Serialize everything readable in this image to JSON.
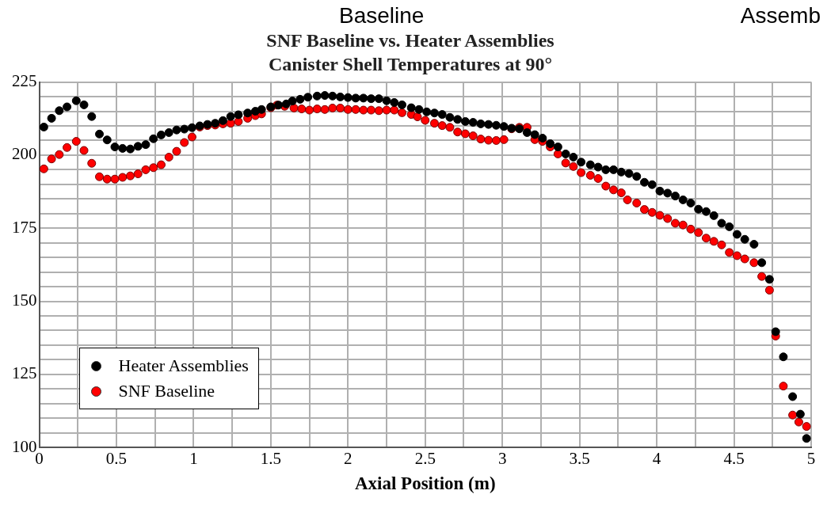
{
  "chart_data": {
    "type": "scatter",
    "title": "SNF Baseline vs. Heater Assemblies",
    "subtitle": "Canister Shell Temperatures at 90°",
    "xlabel": "Axial Position (m)",
    "annotations": [
      "Baseline",
      "Assemb"
    ],
    "xlim": [
      0,
      5
    ],
    "xticks": [
      0,
      {
        "value": 0.25,
        "label": null
      },
      0.5,
      {
        "value": 0.75,
        "label": null
      },
      1,
      {
        "value": 1.25,
        "label": null
      },
      1.5,
      {
        "value": 1.75,
        "label": null
      },
      2,
      {
        "value": 2.25,
        "label": null
      },
      2.5,
      {
        "value": 2.75,
        "label": null
      },
      3,
      {
        "value": 3.25,
        "label": null
      },
      3.5,
      {
        "value": 3.75,
        "label": null
      },
      4,
      {
        "value": 4.25,
        "label": null
      },
      4.5,
      {
        "value": 4.75,
        "label": null
      },
      5
    ],
    "ylim": [
      100,
      225
    ],
    "yticks": [
      100,
      {
        "value": 105,
        "label": null
      },
      {
        "value": 110,
        "label": null
      },
      {
        "value": 115,
        "label": null
      },
      {
        "value": 120,
        "label": null
      },
      125,
      {
        "value": 130,
        "label": null
      },
      {
        "value": 135,
        "label": null
      },
      {
        "value": 140,
        "label": null
      },
      {
        "value": 145,
        "label": null
      },
      150,
      {
        "value": 155,
        "label": null
      },
      {
        "value": 160,
        "label": null
      },
      {
        "value": 165,
        "label": null
      },
      {
        "value": 170,
        "label": null
      },
      175,
      {
        "value": 180,
        "label": null
      },
      {
        "value": 185,
        "label": null
      },
      {
        "value": 190,
        "label": null
      },
      {
        "value": 195,
        "label": null
      },
      200,
      {
        "value": 205,
        "label": null
      },
      {
        "value": 210,
        "label": null
      },
      {
        "value": 215,
        "label": null
      },
      {
        "value": 220,
        "label": null
      },
      225
    ],
    "grid": true,
    "legend": "bottom left",
    "marker": "circle",
    "series": [
      {
        "name": "Heater Assemblies",
        "color": "#000000",
        "x": [
          0.03,
          0.08,
          0.13,
          0.18,
          0.24,
          0.29,
          0.34,
          0.39,
          0.44,
          0.49,
          0.54,
          0.59,
          0.64,
          0.69,
          0.74,
          0.79,
          0.84,
          0.89,
          0.94,
          0.99,
          1.04,
          1.09,
          1.14,
          1.19,
          1.24,
          1.29,
          1.35,
          1.4,
          1.44,
          1.5,
          1.55,
          1.6,
          1.64,
          1.69,
          1.74,
          1.8,
          1.85,
          1.9,
          1.95,
          2.0,
          2.05,
          2.1,
          2.15,
          2.2,
          2.25,
          2.3,
          2.35,
          2.41,
          2.46,
          2.51,
          2.56,
          2.61,
          2.66,
          2.71,
          2.76,
          2.81,
          2.86,
          2.91,
          2.96,
          3.01,
          3.06,
          3.11,
          3.16,
          3.21,
          3.26,
          3.31,
          3.36,
          3.41,
          3.46,
          3.51,
          3.57,
          3.62,
          3.67,
          3.72,
          3.77,
          3.82,
          3.87,
          3.92,
          3.97,
          4.02,
          4.07,
          4.12,
          4.17,
          4.22,
          4.27,
          4.32,
          4.37,
          4.42,
          4.47,
          4.52,
          4.57,
          4.63,
          4.68,
          4.73,
          4.77,
          4.82,
          4.88,
          4.93,
          4.97
        ],
        "values": [
          209.6,
          212.6,
          215.2,
          216.5,
          218.6,
          217.2,
          213.2,
          207.2,
          205.2,
          202.8,
          202.3,
          202.1,
          203,
          203.6,
          205.6,
          206.9,
          207.7,
          208.6,
          208.9,
          209.4,
          210,
          210.5,
          210.9,
          211.8,
          213.2,
          213.8,
          214.4,
          215,
          215.6,
          216.5,
          217.1,
          217.5,
          218.5,
          219.1,
          219.8,
          220.2,
          220.4,
          220.2,
          219.9,
          219.7,
          219.5,
          219.5,
          219.3,
          219.3,
          218.6,
          218,
          217.2,
          216.2,
          215.6,
          214.8,
          214.4,
          213.9,
          212.9,
          212.2,
          211.5,
          211.2,
          210.7,
          210.5,
          210.2,
          209.8,
          209.2,
          209,
          207.7,
          207,
          205.8,
          203.9,
          202.8,
          200.4,
          199.3,
          197.6,
          196.7,
          195.9,
          195,
          195,
          194.2,
          193.7,
          192.7,
          190.7,
          189.9,
          187.7,
          187,
          186,
          184.7,
          183.6,
          181.5,
          180.7,
          179.3,
          176.7,
          175.5,
          172.9,
          171.2,
          169.5,
          163.2,
          157.5,
          139.6,
          131,
          117.4,
          111.4,
          103.1
        ]
      },
      {
        "name": "SNF Baseline",
        "color": "#ff0000",
        "x": [
          0.03,
          0.08,
          0.13,
          0.18,
          0.24,
          0.29,
          0.34,
          0.39,
          0.44,
          0.49,
          0.54,
          0.59,
          0.64,
          0.69,
          0.74,
          0.79,
          0.84,
          0.89,
          0.94,
          0.99,
          1.04,
          1.09,
          1.14,
          1.19,
          1.24,
          1.29,
          1.35,
          1.4,
          1.44,
          1.5,
          1.54,
          1.59,
          1.65,
          1.7,
          1.75,
          1.8,
          1.85,
          1.9,
          1.95,
          2.0,
          2.05,
          2.1,
          2.15,
          2.2,
          2.25,
          2.3,
          2.35,
          2.41,
          2.45,
          2.5,
          2.56,
          2.61,
          2.66,
          2.71,
          2.76,
          2.81,
          2.86,
          2.91,
          2.96,
          3.01,
          3.06,
          3.11,
          3.16,
          3.21,
          3.26,
          3.31,
          3.36,
          3.41,
          3.46,
          3.51,
          3.57,
          3.62,
          3.67,
          3.72,
          3.77,
          3.81,
          3.87,
          3.92,
          3.97,
          4.02,
          4.07,
          4.12,
          4.17,
          4.22,
          4.27,
          4.32,
          4.37,
          4.42,
          4.47,
          4.52,
          4.57,
          4.63,
          4.68,
          4.73,
          4.77,
          4.82,
          4.88,
          4.92,
          4.97
        ],
        "values": [
          195.3,
          198.7,
          200.2,
          202.6,
          204.7,
          201.6,
          197.2,
          192.6,
          191.8,
          191.8,
          192.4,
          192.9,
          193.6,
          195,
          195.7,
          196.7,
          199.3,
          201.3,
          204.3,
          206.2,
          209.6,
          210.1,
          210.3,
          210.7,
          210.9,
          211.5,
          212.6,
          213.5,
          214.1,
          216.2,
          217.1,
          216.7,
          216.1,
          215.8,
          215.4,
          215.8,
          215.6,
          216.1,
          216.1,
          215.6,
          215.6,
          215.4,
          215.4,
          215.2,
          215.4,
          215.4,
          214.5,
          213.9,
          213.1,
          211.9,
          210.9,
          210.1,
          209.5,
          207.9,
          207.3,
          206.6,
          205.5,
          205.1,
          205,
          205.3,
          209,
          209.5,
          209.5,
          205.3,
          204.7,
          202.8,
          200.4,
          197.3,
          196.1,
          194,
          193.1,
          192,
          189.4,
          188.1,
          187.1,
          184.7,
          183.6,
          181.4,
          180.4,
          179.4,
          178.3,
          176.7,
          176.1,
          174.7,
          173.5,
          171.6,
          170.5,
          169.3,
          166.7,
          165.6,
          164.5,
          163.2,
          158.5,
          153.8,
          138.1,
          121,
          111.1,
          108.7,
          107.2
        ]
      }
    ]
  }
}
